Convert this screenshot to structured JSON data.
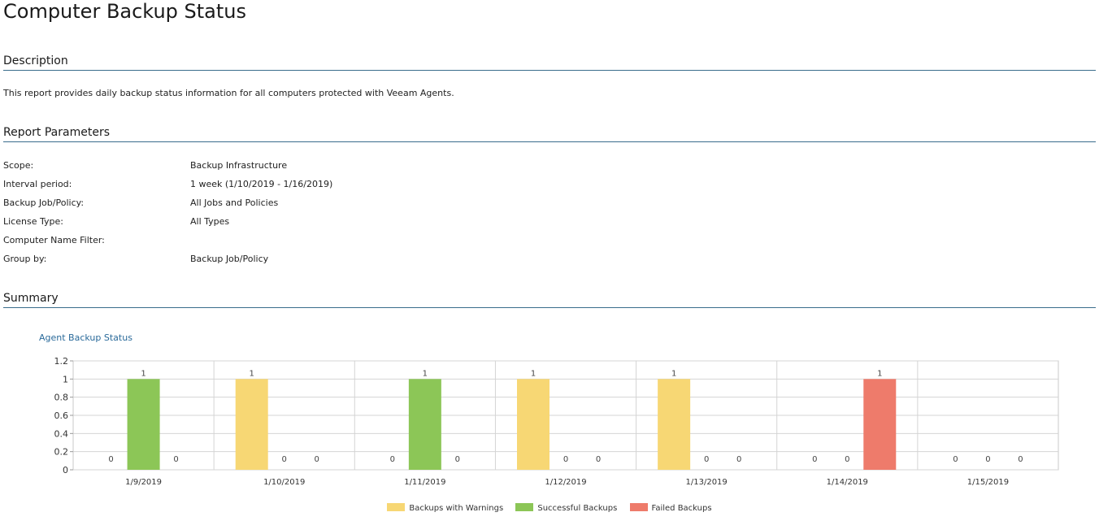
{
  "page": {
    "title": "Computer Backup Status"
  },
  "sections": {
    "description_heading": "Description",
    "description_text": "This report provides daily backup status information for all computers protected with Veeam Agents.",
    "parameters_heading": "Report Parameters",
    "summary_heading": "Summary"
  },
  "parameters": [
    {
      "label": "Scope:",
      "value": "Backup Infrastructure"
    },
    {
      "label": "Interval period:",
      "value": "1 week (1/10/2019 - 1/16/2019)"
    },
    {
      "label": "Backup Job/Policy:",
      "value": "All Jobs and Policies"
    },
    {
      "label": "License Type:",
      "value": "All Types"
    },
    {
      "label": "Computer Name Filter:",
      "value": ""
    },
    {
      "label": "Group by:",
      "value": "Backup Job/Policy"
    }
  ],
  "chart_data": {
    "type": "bar",
    "title": "Agent Backup Status",
    "categories": [
      "1/9/2019",
      "1/10/2019",
      "1/11/2019",
      "1/12/2019",
      "1/13/2019",
      "1/14/2019",
      "1/15/2019"
    ],
    "series": [
      {
        "name": "Backups with Warnings",
        "color": "#f7d774",
        "values": [
          0,
          1,
          0,
          1,
          1,
          0,
          0
        ]
      },
      {
        "name": "Successful Backups",
        "color": "#8cc657",
        "values": [
          1,
          0,
          1,
          0,
          0,
          0,
          0
        ]
      },
      {
        "name": "Failed Backups",
        "color": "#ee7b6b",
        "values": [
          0,
          0,
          0,
          0,
          0,
          1,
          0
        ]
      }
    ],
    "yticks": [
      "0",
      "0.2",
      "0.4",
      "0.6",
      "0.8",
      "1",
      "1.2"
    ],
    "ylim": [
      0,
      1.2
    ],
    "grid": true,
    "legend": "bottom-center"
  }
}
